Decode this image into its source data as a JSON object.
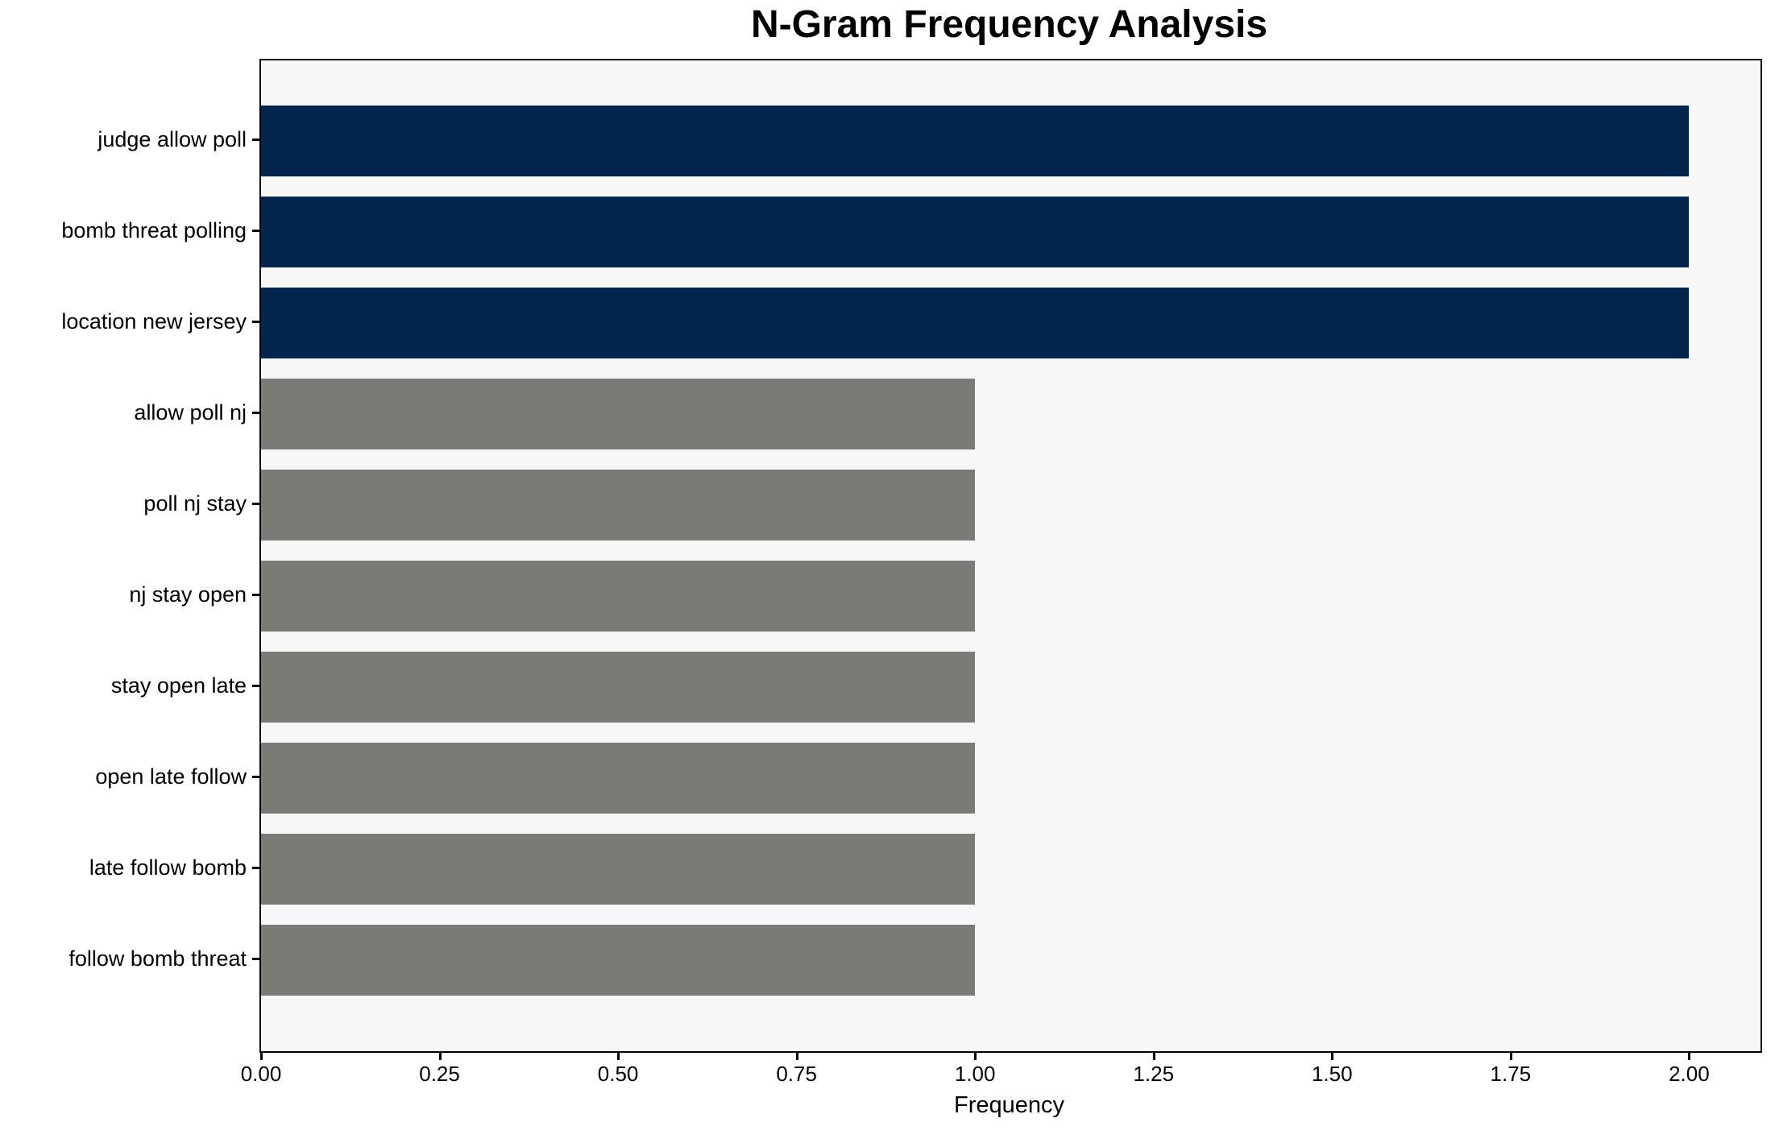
{
  "chart_data": {
    "type": "bar",
    "orientation": "horizontal",
    "title": "N-Gram Frequency Analysis",
    "xlabel": "Frequency",
    "ylabel": "",
    "categories": [
      "judge allow poll",
      "bomb threat polling",
      "location new jersey",
      "allow poll nj",
      "poll nj stay",
      "nj stay open",
      "stay open late",
      "open late follow",
      "late follow bomb",
      "follow bomb threat"
    ],
    "values": [
      2,
      2,
      2,
      1,
      1,
      1,
      1,
      1,
      1,
      1
    ],
    "bar_colors": [
      "#02254E",
      "#02254E",
      "#02254E",
      "#7A7A77",
      "#7A7A77",
      "#7A7A77",
      "#7A7A77",
      "#7A7A77",
      "#7A7A77",
      "#7A7A77"
    ],
    "xlim": [
      0,
      2.1
    ],
    "xticks": [
      0.0,
      0.25,
      0.5,
      0.75,
      1.0,
      1.25,
      1.5,
      1.75,
      2.0
    ],
    "xtick_labels": [
      "0.00",
      "0.25",
      "0.50",
      "0.75",
      "1.00",
      "1.25",
      "1.50",
      "1.75",
      "2.00"
    ],
    "grid": false,
    "legend_position": "none",
    "colors": {
      "high_frequency_bar": "#02254E",
      "low_frequency_bar": "#7A7A77",
      "plot_background": "#F7F7F7",
      "figure_background": "#FFFFFF",
      "axis_and_text": "#000000"
    }
  }
}
